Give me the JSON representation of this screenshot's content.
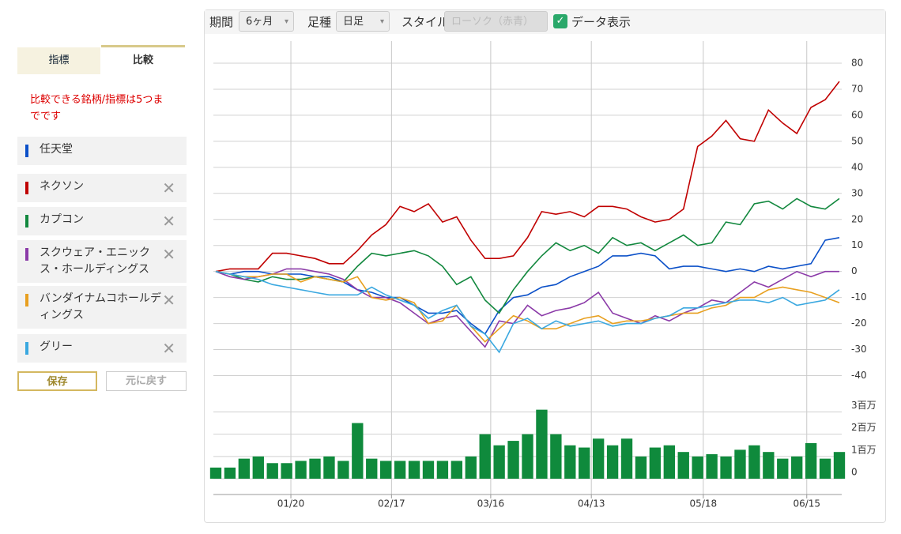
{
  "tabs": [
    "指標",
    "比較"
  ],
  "note": "比較できる銘柄/指標は5つまでです",
  "removable": [
    false,
    true,
    true,
    true,
    true,
    true
  ],
  "buttons": [
    "保存",
    "元に戻す"
  ],
  "toolbar": {
    "period_label": "期間",
    "period": "6ヶ月",
    "bar_label": "足種",
    "bar": "日足",
    "style_label": "スタイル",
    "style": "ローソク（赤青）",
    "data_label": "データ表示",
    "data_checked": true
  },
  "chart_data": [
    {
      "type": "line",
      "x": [
        0,
        1,
        2,
        3,
        4,
        5,
        6,
        7,
        8,
        9,
        10,
        11,
        12,
        13,
        14,
        15,
        16,
        17,
        18,
        19,
        20,
        21,
        22,
        23,
        24,
        25,
        26,
        27,
        28,
        29,
        30,
        31,
        32,
        33,
        34,
        35,
        36,
        37,
        38,
        39,
        40,
        41,
        42,
        43,
        44
      ],
      "xlim": [
        0,
        44
      ],
      "xticks": [
        {
          "value": 5.3,
          "label": "01/20"
        },
        {
          "value": 12.4,
          "label": "02/17"
        },
        {
          "value": 19.4,
          "label": "03/16"
        },
        {
          "value": 26.5,
          "label": "04/13"
        },
        {
          "value": 34.4,
          "label": "05/18"
        },
        {
          "value": 41.7,
          "label": "06/15"
        }
      ],
      "ylim": [
        -45,
        88.5
      ],
      "yticks": [
        -40,
        -30,
        -20,
        -10,
        0,
        10,
        20,
        30,
        40,
        50,
        60,
        70,
        80
      ],
      "grid": true,
      "series": [
        {
          "name": "任天堂",
          "color": "#0b50c8",
          "values": [
            0,
            -1,
            0,
            0,
            -1,
            -1,
            -1,
            -2,
            -2,
            -4,
            -7,
            -8,
            -10,
            -10,
            -13,
            -16,
            -16,
            -15,
            -20,
            -24,
            -15,
            -10,
            -9,
            -6,
            -5,
            -2,
            0,
            2,
            6,
            6,
            7,
            6,
            1,
            2,
            2,
            1,
            0,
            1,
            0,
            2,
            1,
            2,
            3,
            12,
            13
          ]
        },
        {
          "name": "ネクソン",
          "color": "#c00000",
          "values": [
            0,
            1,
            1,
            1,
            7,
            7,
            6,
            5,
            3,
            3,
            8,
            14,
            18,
            25,
            23,
            26,
            19,
            21,
            12,
            5,
            5,
            6,
            13,
            23,
            22,
            23,
            21,
            25,
            25,
            24,
            21,
            19,
            20,
            24,
            48,
            52,
            58,
            51,
            50,
            62,
            57,
            53,
            63,
            66,
            73
          ]
        },
        {
          "name": "カプコン",
          "color": "#12883e",
          "values": [
            0,
            -1,
            -3,
            -4,
            -2,
            -3,
            -3,
            -2,
            -3,
            -4,
            2,
            7,
            6,
            7,
            8,
            6,
            2,
            -5,
            -2,
            -11,
            -16,
            -7,
            0,
            6,
            11,
            8,
            10,
            7,
            13,
            10,
            11,
            8,
            11,
            14,
            10,
            11,
            19,
            18,
            26,
            27,
            24,
            28,
            25,
            24,
            28
          ]
        },
        {
          "name": "スクウェア・エニックス・ホールディングス",
          "color": "#8b3aa8",
          "values": [
            0,
            -2,
            -3,
            -2,
            -1,
            1,
            1,
            0,
            -1,
            -3,
            -7,
            -10,
            -10,
            -12,
            -16,
            -20,
            -18,
            -17,
            -23,
            -29,
            -19,
            -20,
            -13,
            -17,
            -15,
            -14,
            -12,
            -8,
            -16,
            -18,
            -20,
            -17,
            -19,
            -16,
            -14,
            -11,
            -12,
            -8,
            -4,
            -6,
            -3,
            0,
            -2,
            0,
            0
          ]
        },
        {
          "name": "バンダイナムコホールディングス",
          "color": "#e8a020",
          "values": [
            0,
            -1,
            -2,
            -2,
            -1,
            -1,
            -4,
            -2,
            -3,
            -4,
            -2,
            -10,
            -11,
            -10,
            -12,
            -20,
            -19,
            -13,
            -21,
            -27,
            -22,
            -17,
            -19,
            -22,
            -22,
            -20,
            -18,
            -17,
            -20,
            -19,
            -19,
            -18,
            -17,
            -16,
            -16,
            -14,
            -13,
            -10,
            -10,
            -7,
            -6,
            -7,
            -8,
            -10,
            -12
          ]
        },
        {
          "name": "グリー",
          "color": "#3aa8e0",
          "values": [
            0,
            -1,
            -2,
            -3,
            -5,
            -6,
            -7,
            -8,
            -9,
            -9,
            -9,
            -6,
            -9,
            -11,
            -13,
            -18,
            -15,
            -13,
            -21,
            -24,
            -31,
            -20,
            -18,
            -22,
            -19,
            -21,
            -20,
            -19,
            -21,
            -20,
            -20,
            -18,
            -17,
            -14,
            -14,
            -13,
            -12,
            -11,
            -11,
            -12,
            -10,
            -13,
            -12,
            -11,
            -7
          ]
        }
      ]
    },
    {
      "type": "bar",
      "x": [
        0,
        1,
        2,
        3,
        4,
        5,
        6,
        7,
        8,
        9,
        10,
        11,
        12,
        13,
        14,
        15,
        16,
        17,
        18,
        19,
        20,
        21,
        22,
        23,
        24,
        25,
        26,
        27,
        28,
        29,
        30,
        31,
        32,
        33,
        34,
        35,
        36,
        37,
        38,
        39,
        40,
        41,
        42,
        43,
        44
      ],
      "xlim": [
        0,
        44
      ],
      "color": "#0f8a3c",
      "values": [
        0.5,
        0.5,
        0.9,
        1.0,
        0.7,
        0.7,
        0.8,
        0.9,
        1.0,
        0.8,
        2.5,
        0.9,
        0.8,
        0.8,
        0.8,
        0.8,
        0.8,
        0.8,
        1.0,
        2.0,
        1.5,
        1.7,
        2.0,
        3.1,
        2.0,
        1.5,
        1.4,
        1.8,
        1.5,
        1.8,
        1.0,
        1.4,
        1.5,
        1.2,
        1.0,
        1.1,
        1.0,
        1.3,
        1.5,
        1.2,
        0.9,
        1.0,
        1.6,
        0.9,
        1.2
      ],
      "ylim": [
        0,
        3.3
      ],
      "yticks": [
        0,
        {
          "value": 1,
          "label": "1百万"
        },
        {
          "value": 2,
          "label": "2百万"
        },
        {
          "value": 3,
          "label": "3百万"
        }
      ]
    }
  ]
}
